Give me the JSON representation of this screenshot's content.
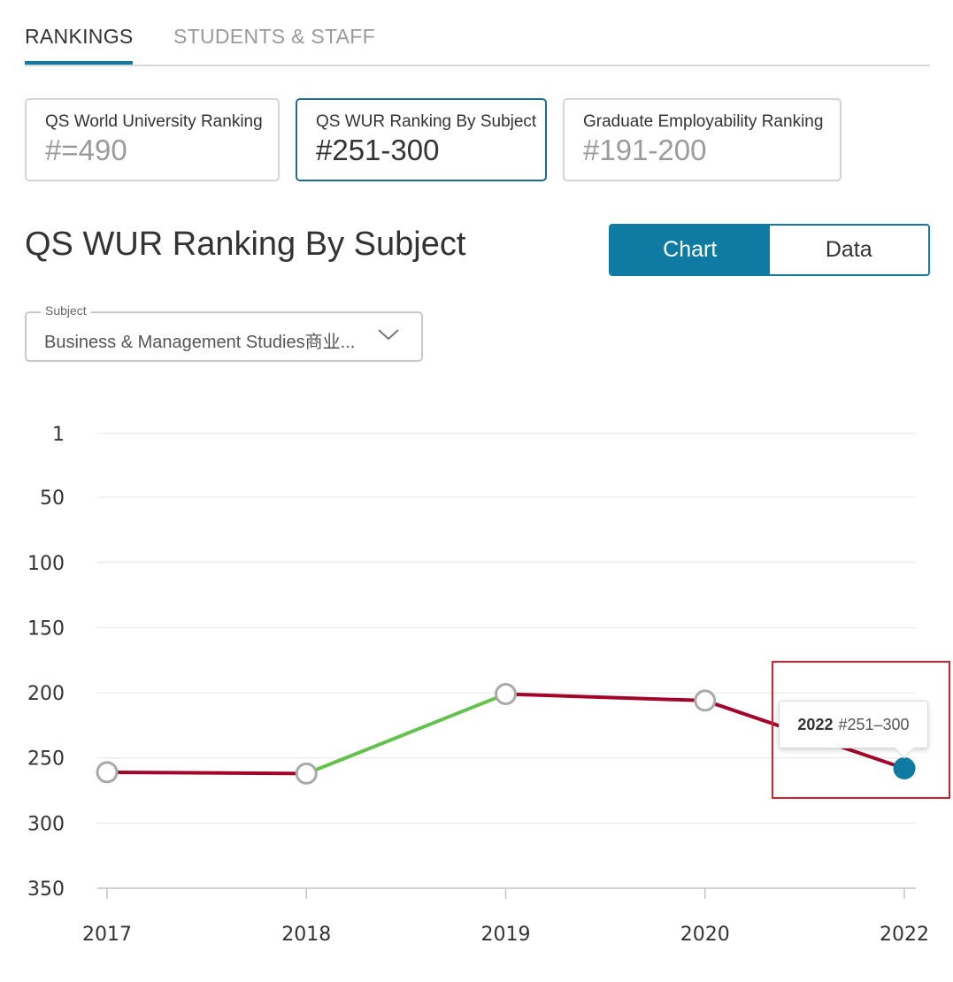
{
  "tabs": [
    {
      "label": "RANKINGS",
      "active": true
    },
    {
      "label": "STUDENTS & STAFF",
      "active": false
    }
  ],
  "cards": [
    {
      "label": "QS World University Ranking",
      "value": "#=490",
      "selected": false
    },
    {
      "label": "QS WUR Ranking By Subject",
      "value": "#251-300",
      "selected": true
    },
    {
      "label": "Graduate Employability Ranking",
      "value": "#191-200",
      "selected": false
    }
  ],
  "section_title": "QS WUR Ranking By Subject",
  "view_toggle": {
    "chart_label": "Chart",
    "data_label": "Data",
    "active": "Chart"
  },
  "subject_select": {
    "legend": "Subject",
    "value": "Business & Management Studies商业..."
  },
  "tooltip": {
    "year": "2022",
    "value": "#251–300"
  },
  "colors": {
    "accent": "#0f7ba3",
    "decline_line": "#a3052a",
    "improve_line": "#62c24d",
    "highlight_box": "#d8202c"
  },
  "icons": {
    "dropdown": "chevron-down-icon"
  },
  "chart_data": {
    "type": "line",
    "categories": [
      "2017",
      "2018",
      "2019",
      "2020",
      "2022"
    ],
    "series": [
      {
        "values": [
          261,
          262,
          201,
          206,
          258
        ]
      }
    ],
    "title": "",
    "xlabel": "",
    "ylabel": "",
    "y_ticks": [
      1,
      50,
      100,
      150,
      200,
      250,
      300,
      350
    ],
    "ylim": [
      1,
      350
    ],
    "y_reversed": true,
    "grid": true,
    "highlighted_point": "2022"
  }
}
